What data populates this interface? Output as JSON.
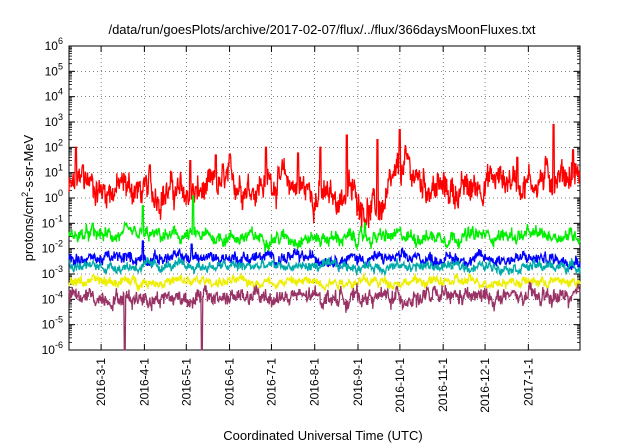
{
  "chart_data": {
    "type": "line",
    "title": "/data/run/goesPlots/archive/2017-02-07/flux/../flux/366daysMoonFluxes.txt",
    "xlabel": "Coordinated Universal Time (UTC)",
    "ylabel_parts": [
      "protons/cm",
      "2",
      "-s-sr-MeV"
    ],
    "y_scale": "log",
    "ylim": [
      1e-06,
      1000000.0
    ],
    "y_ticks": [
      {
        "base": "10",
        "exp": "-6"
      },
      {
        "base": "10",
        "exp": "-5"
      },
      {
        "base": "10",
        "exp": "-4"
      },
      {
        "base": "10",
        "exp": "-3"
      },
      {
        "base": "10",
        "exp": "-2"
      },
      {
        "base": "10",
        "exp": "-1"
      },
      {
        "base": "10",
        "exp": "0"
      },
      {
        "base": "10",
        "exp": "1"
      },
      {
        "base": "10",
        "exp": "2"
      },
      {
        "base": "10",
        "exp": "3"
      },
      {
        "base": "10",
        "exp": "4"
      },
      {
        "base": "10",
        "exp": "5"
      },
      {
        "base": "10",
        "exp": "6"
      }
    ],
    "y_tick_labels": [
      "10-6",
      "10-5",
      "10-4",
      "10-3",
      "10-2",
      "10-1",
      "100",
      "101",
      "102",
      "103",
      "104",
      "105",
      "106"
    ],
    "xlim": [
      "2016-02-07",
      "2017-02-07"
    ],
    "x_ticks": [
      "2016-3-1",
      "2016-4-1",
      "2016-5-1",
      "2016-6-1",
      "2016-7-1",
      "2016-8-1",
      "2016-9-1",
      "2016-10-1",
      "2016-11-1",
      "2016-12-1",
      "2017-1-1"
    ],
    "grid": true,
    "series": [
      {
        "color": "#ff0000",
        "noise": 0.55,
        "keypoints": [
          [
            "2016-02-07",
            2
          ],
          [
            "2016-02-20",
            5
          ],
          [
            "2016-03-01",
            2
          ],
          [
            "2016-03-20",
            3
          ],
          [
            "2016-04-01",
            1.5
          ],
          [
            "2016-04-20",
            2
          ],
          [
            "2016-05-01",
            1.2
          ],
          [
            "2016-05-20",
            2
          ],
          [
            "2016-06-01",
            5
          ],
          [
            "2016-06-20",
            3
          ],
          [
            "2016-07-01",
            6
          ],
          [
            "2016-07-20",
            3
          ],
          [
            "2016-08-01",
            1.5
          ],
          [
            "2016-08-15",
            0.8
          ],
          [
            "2016-08-25",
            2
          ],
          [
            "2016-09-01",
            1
          ],
          [
            "2016-09-10",
            0.3
          ],
          [
            "2016-09-20",
            0.5
          ],
          [
            "2016-09-28",
            5
          ],
          [
            "2016-10-05",
            20
          ],
          [
            "2016-10-15",
            5
          ],
          [
            "2016-11-01",
            2
          ],
          [
            "2016-11-20",
            2
          ],
          [
            "2016-12-01",
            5
          ],
          [
            "2016-12-20",
            6
          ],
          [
            "2017-01-01",
            4
          ],
          [
            "2017-01-20",
            8
          ],
          [
            "2017-02-07",
            10
          ]
        ],
        "spikes": [
          [
            "2016-02-12",
            100
          ],
          [
            "2016-02-17",
            20
          ],
          [
            "2016-04-05",
            20
          ],
          [
            "2016-05-04",
            30
          ],
          [
            "2016-05-22",
            50
          ],
          [
            "2016-06-27",
            100
          ],
          [
            "2016-07-20",
            60
          ],
          [
            "2016-08-05",
            100
          ],
          [
            "2016-08-24",
            300
          ],
          [
            "2016-09-15",
            200
          ],
          [
            "2016-10-01",
            500
          ],
          [
            "2016-12-24",
            40
          ],
          [
            "2017-01-19",
            800
          ],
          [
            "2017-02-02",
            80
          ]
        ]
      },
      {
        "color": "#00ee00",
        "noise": 0.25,
        "keypoints": [
          [
            "2016-02-07",
            0.035
          ],
          [
            "2016-05-01",
            0.03
          ],
          [
            "2016-09-01",
            0.025
          ],
          [
            "2016-10-01",
            0.03
          ],
          [
            "2017-02-07",
            0.035
          ]
        ],
        "spikes": [
          [
            "2016-02-24",
            0.1
          ],
          [
            "2016-03-31",
            0.5
          ],
          [
            "2016-05-06",
            1.2
          ],
          [
            "2016-09-06",
            0.1
          ]
        ]
      },
      {
        "color": "#0000ff",
        "noise": 0.22,
        "keypoints": [
          [
            "2016-02-07",
            0.004
          ],
          [
            "2016-06-01",
            0.0045
          ],
          [
            "2016-10-01",
            0.004
          ],
          [
            "2017-02-07",
            0.004
          ]
        ],
        "spikes": [
          [
            "2016-03-31",
            0.02
          ],
          [
            "2016-05-05",
            0.015
          ]
        ]
      },
      {
        "color": "#00aaaa",
        "noise": 0.18,
        "keypoints": [
          [
            "2016-02-07",
            0.002
          ],
          [
            "2017-02-07",
            0.002
          ]
        ],
        "spikes": []
      },
      {
        "color": "#eeee00",
        "noise": 0.18,
        "keypoints": [
          [
            "2016-02-07",
            0.0005
          ],
          [
            "2017-02-07",
            0.0005
          ]
        ],
        "spikes": []
      },
      {
        "color": "#993366",
        "noise": 0.3,
        "keypoints": [
          [
            "2016-02-07",
            0.00012
          ],
          [
            "2017-02-07",
            0.00012
          ]
        ],
        "spikes": [
          [
            "2016-03-18",
            1e-06
          ],
          [
            "2016-05-12",
            1e-06
          ]
        ]
      }
    ]
  }
}
